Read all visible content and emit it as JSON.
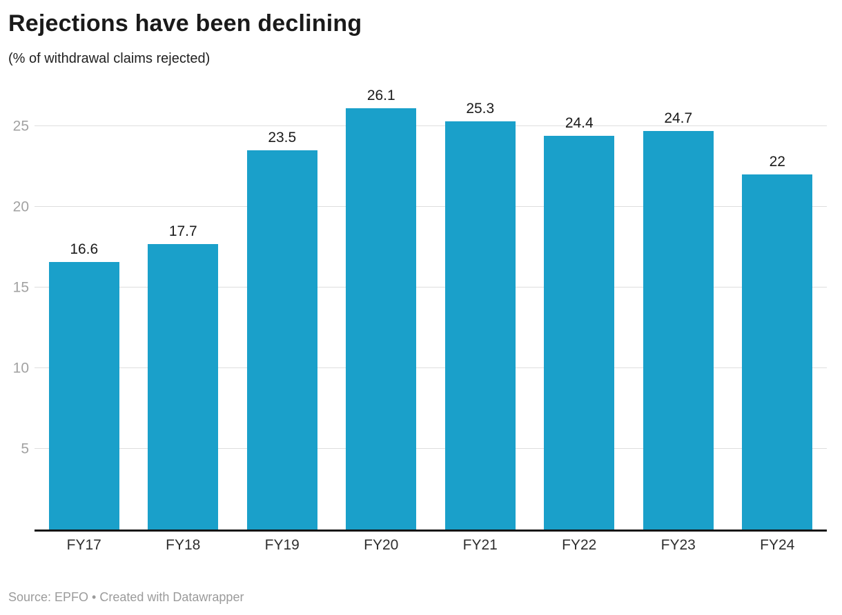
{
  "header": {
    "title": "Rejections have been declining",
    "subtitle": "(% of withdrawal claims rejected)"
  },
  "chart_data": {
    "type": "bar",
    "title": "Rejections have been declining",
    "subtitle": "(% of withdrawal claims rejected)",
    "categories": [
      "FY17",
      "FY18",
      "FY19",
      "FY20",
      "FY21",
      "FY22",
      "FY23",
      "FY24"
    ],
    "values": [
      16.6,
      17.7,
      23.5,
      26.1,
      25.3,
      24.4,
      24.7,
      22
    ],
    "value_labels": [
      "16.6",
      "17.7",
      "23.5",
      "26.1",
      "25.3",
      "24.4",
      "24.7",
      "22"
    ],
    "xlabel": "",
    "ylabel": "",
    "yticks": [
      5,
      10,
      15,
      20,
      25
    ],
    "ylim": [
      0,
      27.35
    ],
    "grid": "horizontal",
    "legend": "none",
    "bar_color": "#1AA0CA"
  },
  "colors": {
    "bar": "#1AA0CA",
    "gridline": "#dedede",
    "axis_line": "#141414",
    "y_tick_label": "#a2a2a2",
    "value_label": "#1a1a1a",
    "x_tick_label": "#2e2e2e",
    "footer_text": "#9b9b9b"
  },
  "footer": {
    "text": "Source: EPFO • Created with Datawrapper"
  }
}
